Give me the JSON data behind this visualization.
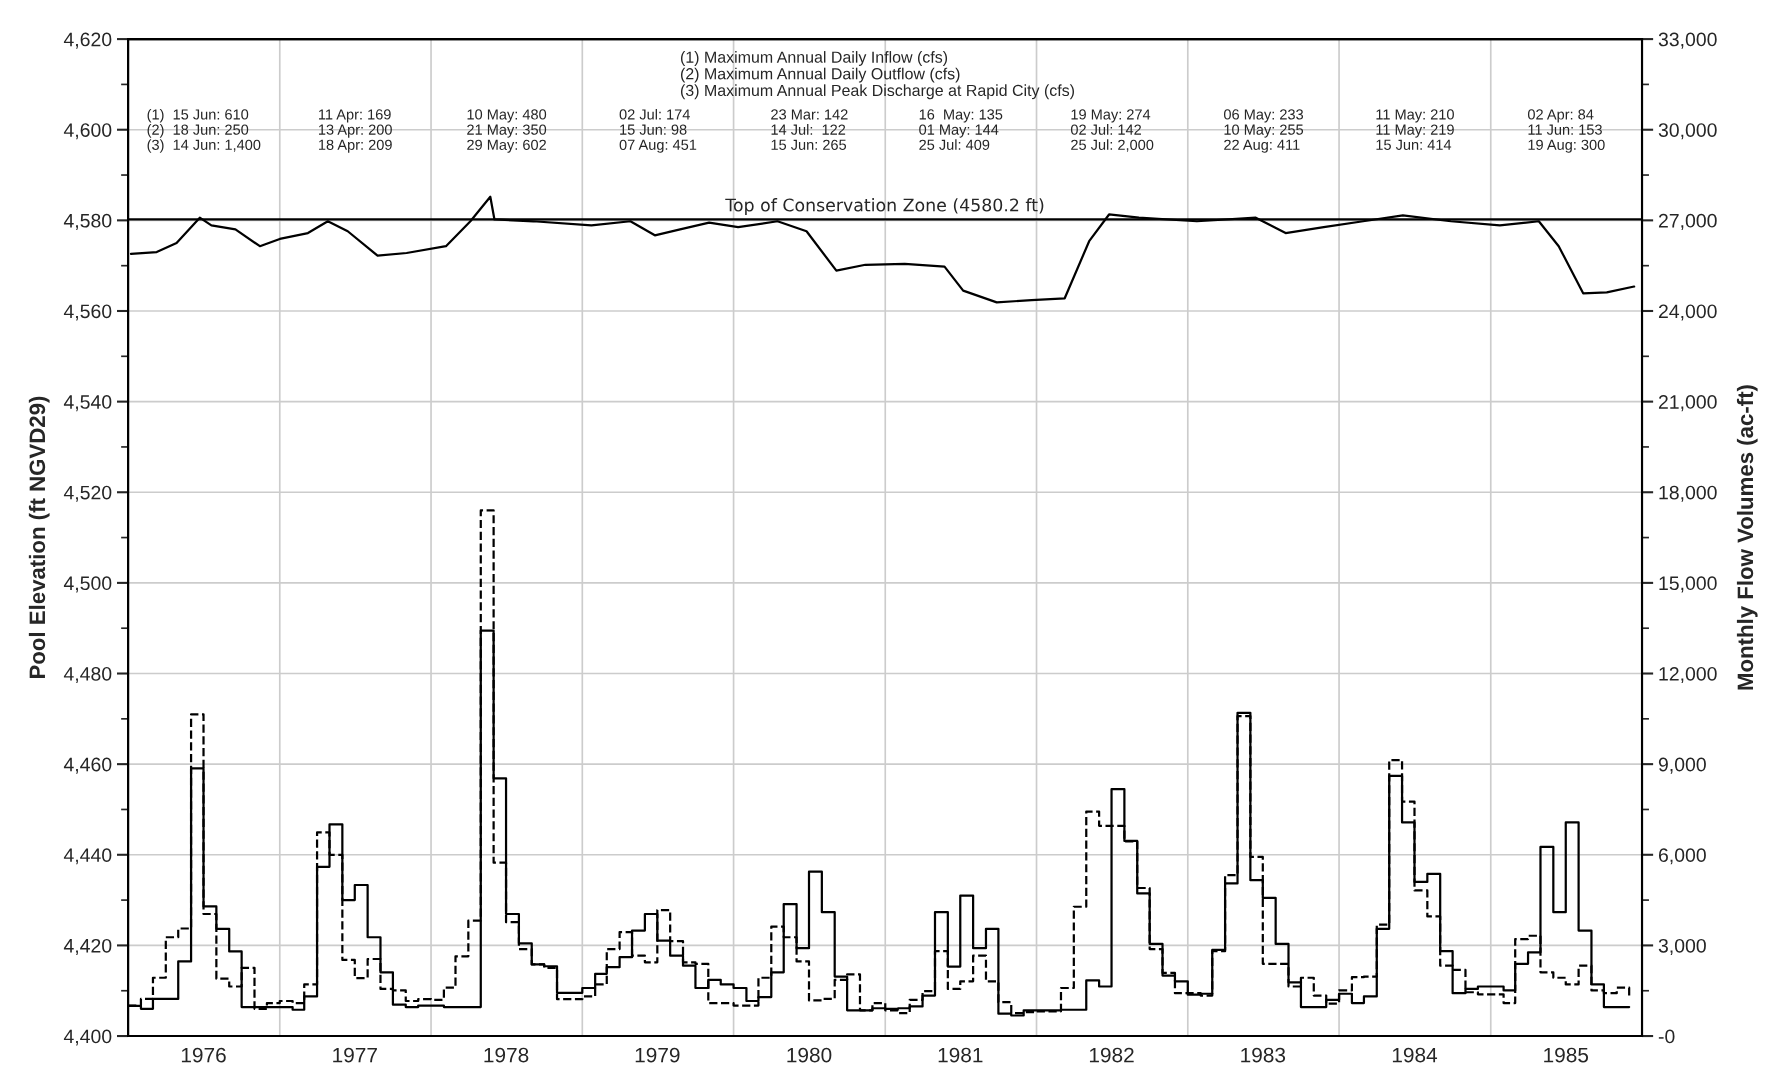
{
  "chart_data": {
    "type": "line",
    "ylabel": "Pool Elevation (ft NGVD29)",
    "y2label": "Monthly Flow Volumes (ac-ft)",
    "xlim": [
      "1976-01-01",
      "1986-01-01"
    ],
    "xticks": [
      {
        "value": "1976-01-01",
        "label": null
      },
      {
        "value": "1977-01-01",
        "label": null
      },
      {
        "value": "1978-01-01",
        "label": null
      },
      {
        "value": "1979-01-01",
        "label": null
      },
      {
        "value": "1980-01-01",
        "label": null
      },
      {
        "value": "1981-01-01",
        "label": null
      },
      {
        "value": "1982-01-01",
        "label": null
      },
      {
        "value": "1983-01-01",
        "label": null
      },
      {
        "value": "1984-01-01",
        "label": null
      },
      {
        "value": "1985-01-01",
        "label": null
      },
      {
        "value": "1986-01-01",
        "label": null
      },
      {
        "value": "1976-07-01",
        "label": "1976"
      },
      {
        "value": "1977-07-01",
        "label": "1977"
      },
      {
        "value": "1978-07-01",
        "label": "1978"
      },
      {
        "value": "1979-07-01",
        "label": "1979"
      },
      {
        "value": "1980-07-01",
        "label": "1980"
      },
      {
        "value": "1981-07-01",
        "label": "1981"
      },
      {
        "value": "1982-07-01",
        "label": "1982"
      },
      {
        "value": "1983-07-01",
        "label": "1983"
      },
      {
        "value": "1984-07-01",
        "label": "1984"
      },
      {
        "value": "1985-07-01",
        "label": "1985"
      }
    ],
    "ylim": [
      4400,
      4620
    ],
    "yticks": [
      {
        "value": 4400,
        "label": "4,400"
      },
      {
        "value": 4420,
        "label": "4,420"
      },
      {
        "value": 4440,
        "label": "4,440"
      },
      {
        "value": 4460,
        "label": "4,460"
      },
      {
        "value": 4480,
        "label": "4,480"
      },
      {
        "value": 4500,
        "label": "4,500"
      },
      {
        "value": 4520,
        "label": "4,520"
      },
      {
        "value": 4540,
        "label": "4,540"
      },
      {
        "value": 4560,
        "label": "4,560"
      },
      {
        "value": 4580,
        "label": "4,580"
      },
      {
        "value": 4600,
        "label": "4,600"
      },
      {
        "value": 4620,
        "label": "4,620"
      },
      {
        "value": 4410,
        "label": null
      },
      {
        "value": 4430,
        "label": null
      },
      {
        "value": 4450,
        "label": null
      },
      {
        "value": 4470,
        "label": null
      },
      {
        "value": 4490,
        "label": null
      },
      {
        "value": 4510,
        "label": null
      },
      {
        "value": 4530,
        "label": null
      },
      {
        "value": 4550,
        "label": null
      },
      {
        "value": 4570,
        "label": null
      },
      {
        "value": 4590,
        "label": null
      },
      {
        "value": 4610,
        "label": null
      }
    ],
    "y2lim": [
      0,
      33000
    ],
    "y2ticks": [
      {
        "value": 0,
        "label": "-0"
      },
      {
        "value": 3000,
        "label": "3,000"
      },
      {
        "value": 6000,
        "label": "6,000"
      },
      {
        "value": 9000,
        "label": "9,000"
      },
      {
        "value": 12000,
        "label": "12,000"
      },
      {
        "value": 15000,
        "label": "15,000"
      },
      {
        "value": 18000,
        "label": "18,000"
      },
      {
        "value": 21000,
        "label": "21,000"
      },
      {
        "value": 24000,
        "label": "24,000"
      },
      {
        "value": 27000,
        "label": "27,000"
      },
      {
        "value": 30000,
        "label": "30,000"
      },
      {
        "value": 33000,
        "label": "33,000"
      },
      {
        "value": 1500,
        "label": null
      },
      {
        "value": 4500,
        "label": null
      },
      {
        "value": 7500,
        "label": null
      },
      {
        "value": 10500,
        "label": null
      },
      {
        "value": 13500,
        "label": null
      },
      {
        "value": 16500,
        "label": null
      },
      {
        "value": 19500,
        "label": null
      },
      {
        "value": 22500,
        "label": null
      },
      {
        "value": 25500,
        "label": null
      },
      {
        "value": 28500,
        "label": null
      },
      {
        "value": 31500,
        "label": null
      }
    ],
    "grid": true,
    "ref_lines": [
      {
        "axis": "y",
        "value": 4580.2,
        "label": "Top of Conservation Zone (4580.2 ft)",
        "color": "#000000",
        "line_style": "solid"
      }
    ],
    "annotations": [
      "(1) Maximum Annual Daily Inflow (cfs)\n(2) Maximum Annual Daily Outflow (cfs)\n(3) Maximum Annual Peak Discharge at Rapid City (cfs)",
      "(1)  15 Jun: 610\n(2)  18 Jun: 250\n(3)  14 Jun: 1,400",
      "11 Apr: 169\n13 Apr: 200\n18 Apr: 209",
      "10 May: 480\n21 May: 350\n29 May: 602",
      "02 Jul: 174\n15 Jun: 98\n07 Aug: 451",
      "23 Mar: 142\n14 Jul:  122\n15 Jun: 265",
      "16  May: 135\n01 May: 144\n25 Jul: 409",
      "19 May: 274\n02 Jul: 142\n25 Jul: 2,000",
      "06 May: 233\n10 May: 255\n22 Aug: 411",
      "11 May: 210\n11 May: 219\n15 Jun: 414",
      "02 Apr: 84\n11 Jun: 153\n19 Aug: 300"
    ],
    "series": [
      {
        "axis": "y",
        "color": "#000000",
        "line_style": "solid",
        "x": [
          "1976-01-08",
          "1976-03-10",
          "1976-04-27",
          "1976-06-22",
          "1976-07-20",
          "1976-09-16",
          "1976-11-14",
          "1977-01-01",
          "1977-03-10",
          "1977-04-27",
          "1977-06-14",
          "1977-08-25",
          "1977-11-03",
          "1978-02-06",
          "1978-04-06",
          "1978-05-24",
          "1978-06-03",
          "1978-09-05",
          "1979-01-23",
          "1979-04-27",
          "1979-06-25",
          "1979-08-25",
          "1979-11-03",
          "1980-01-12",
          "1980-04-16",
          "1980-06-25",
          "1980-09-05",
          "1980-11-14",
          "1981-02-17",
          "1981-05-24",
          "1981-07-08",
          "1981-09-27",
          "1981-12-20",
          "1982-03-10",
          "1982-05-08",
          "1982-06-25",
          "1982-09-05",
          "1983-01-23",
          "1983-06-14",
          "1983-08-25",
          "1983-11-25",
          "1984-02-28",
          "1984-06-03",
          "1984-09-27",
          "1985-01-23",
          "1985-04-27",
          "1985-06-14",
          "1985-08-12",
          "1985-10-08",
          "1985-12-13"
        ],
        "values": [
          4572.6,
          4573.0,
          4575.0,
          4580.6,
          4578.9,
          4578.0,
          4574.3,
          4575.9,
          4577.2,
          4579.8,
          4577.6,
          4572.2,
          4572.8,
          4574.3,
          4579.8,
          4585.2,
          4580.2,
          4579.8,
          4578.9,
          4579.8,
          4576.7,
          4578.0,
          4579.5,
          4578.5,
          4579.8,
          4577.6,
          4568.9,
          4570.2,
          4570.4,
          4569.8,
          4564.5,
          4561.9,
          4562.4,
          4562.8,
          4575.4,
          4581.3,
          4580.6,
          4579.8,
          4580.6,
          4577.2,
          4578.5,
          4579.8,
          4581.1,
          4579.8,
          4578.9,
          4579.8,
          4574.3,
          4563.9,
          4564.1,
          4565.4
        ]
      },
      {
        "type": "step",
        "axis": "y2",
        "color": "#000000",
        "line_style": "solid",
        "values": [
          1000,
          900,
          1230,
          1230,
          2470,
          8860,
          4290,
          3550,
          2800,
          960,
          960,
          960,
          960,
          870,
          1310,
          5600,
          7010,
          4500,
          5000,
          3270,
          2110,
          1040,
          960,
          1010,
          1010,
          960,
          960,
          960,
          13420,
          8530,
          4040,
          3070,
          2370,
          2310,
          1430,
          1430,
          1590,
          2060,
          2280,
          2610,
          3490,
          4040,
          3160,
          2660,
          2330,
          1590,
          1860,
          1710,
          1590,
          1160,
          1290,
          2110,
          4370,
          2910,
          5440,
          4100,
          1970,
          850,
          850,
          920,
          900,
          920,
          980,
          1340,
          4100,
          2300,
          4650,
          2910,
          3550,
          740,
          680,
          850,
          850,
          850,
          870,
          870,
          1840,
          1640,
          8170,
          6460,
          4720,
          3050,
          2000,
          1810,
          1370,
          1400,
          2850,
          5050,
          10700,
          5160,
          4570,
          3050,
          1780,
          960,
          960,
          1200,
          1400,
          1090,
          1310,
          3550,
          8610,
          7070,
          5100,
          5370,
          2810,
          1420,
          1560,
          1640,
          1640,
          1510,
          2390,
          2770,
          6260,
          4100,
          7070,
          3490,
          1710,
          960,
          960,
          960
        ]
      },
      {
        "type": "step",
        "axis": "y2",
        "color": "#000000",
        "line_style": "dashed",
        "values": [
          1010,
          1230,
          1930,
          3270,
          3560,
          10650,
          4040,
          1900,
          1640,
          2260,
          900,
          1090,
          1160,
          1090,
          1710,
          6740,
          6000,
          2520,
          1920,
          2550,
          1560,
          1510,
          1160,
          1220,
          1200,
          1600,
          2640,
          3820,
          17400,
          5740,
          3770,
          2880,
          2370,
          2260,
          1220,
          1220,
          1310,
          1710,
          2880,
          3440,
          2660,
          2440,
          4170,
          3140,
          2440,
          2390,
          1090,
          1090,
          1010,
          1010,
          1930,
          3620,
          3270,
          2470,
          1180,
          1230,
          1860,
          2040,
          850,
          1090,
          850,
          760,
          1200,
          1490,
          2810,
          1560,
          1810,
          2660,
          1810,
          1120,
          760,
          790,
          820,
          820,
          1590,
          4280,
          7430,
          6960,
          6960,
          6440,
          4900,
          2880,
          2090,
          1420,
          1420,
          1340,
          2810,
          5330,
          10590,
          5930,
          2390,
          2390,
          1640,
          1930,
          1340,
          1070,
          1510,
          1950,
          1970,
          3690,
          9130,
          7760,
          4820,
          3960,
          2330,
          2190,
          1450,
          1380,
          1380,
          1090,
          3210,
          3320,
          2110,
          1930,
          1710,
          2330,
          1510,
          1420,
          1600,
          1230
        ]
      }
    ],
    "x": [
      "1976-01",
      "1976-02",
      "1976-03",
      "1976-04",
      "1976-05",
      "1976-06",
      "1976-07",
      "1976-08",
      "1976-09",
      "1976-10",
      "1976-11",
      "1976-12",
      "1977-01",
      "1977-02",
      "1977-03",
      "1977-04",
      "1977-05",
      "1977-06",
      "1977-07",
      "1977-08",
      "1977-09",
      "1977-10",
      "1977-11",
      "1977-12",
      "1978-01",
      "1978-02",
      "1978-03",
      "1978-04",
      "1978-05",
      "1978-06",
      "1978-07",
      "1978-08",
      "1978-09",
      "1978-10",
      "1978-11",
      "1978-12",
      "1979-01",
      "1979-02",
      "1979-03",
      "1979-04",
      "1979-05",
      "1979-06",
      "1979-07",
      "1979-08",
      "1979-09",
      "1979-10",
      "1979-11",
      "1979-12",
      "1980-01",
      "1980-02",
      "1980-03",
      "1980-04",
      "1980-05",
      "1980-06",
      "1980-07",
      "1980-08",
      "1980-09",
      "1980-10",
      "1980-11",
      "1980-12",
      "1981-01",
      "1981-02",
      "1981-03",
      "1981-04",
      "1981-05",
      "1981-06",
      "1981-07",
      "1981-08",
      "1981-09",
      "1981-10",
      "1981-11",
      "1981-12",
      "1982-01",
      "1982-02",
      "1982-03",
      "1982-04",
      "1982-05",
      "1982-06",
      "1982-07",
      "1982-08",
      "1982-09",
      "1982-10",
      "1982-11",
      "1982-12",
      "1983-01",
      "1983-02",
      "1983-03",
      "1983-04",
      "1983-05",
      "1983-06",
      "1983-07",
      "1983-08",
      "1983-09",
      "1983-10",
      "1983-11",
      "1983-12",
      "1984-01",
      "1984-02",
      "1984-03",
      "1984-04",
      "1984-05",
      "1984-06",
      "1984-07",
      "1984-08",
      "1984-09",
      "1984-10",
      "1984-11",
      "1984-12",
      "1985-01",
      "1985-02",
      "1985-03",
      "1985-04",
      "1985-05",
      "1985-06",
      "1985-07",
      "1985-08",
      "1985-09",
      "1985-10",
      "1985-11",
      "1985-12"
    ]
  }
}
